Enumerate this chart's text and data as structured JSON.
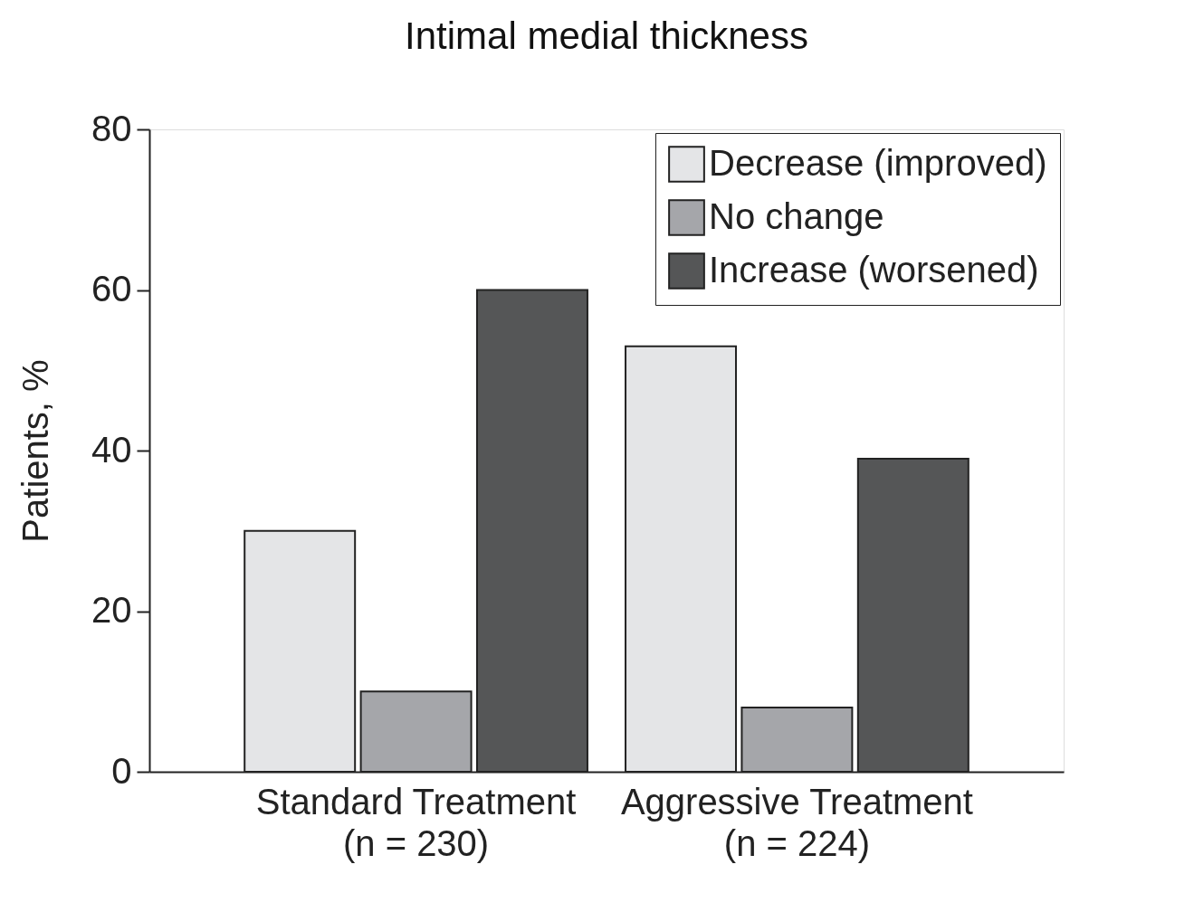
{
  "chart_data": {
    "type": "bar",
    "title": "Intimal medial thickness",
    "ylabel": "Patients, %",
    "categories": [
      "Standard Treatment\n(n = 230)",
      "Aggressive Treatment\n(n = 224)"
    ],
    "series": [
      {
        "name": "Decrease (improved)",
        "color": "#e4e5e7",
        "values": [
          30,
          53
        ]
      },
      {
        "name": "No change",
        "color": "#a5a6aa",
        "values": [
          10,
          8
        ]
      },
      {
        "name": "Increase (worsened)",
        "color": "#555657",
        "values": [
          60,
          39
        ]
      }
    ],
    "ylim": [
      0,
      80
    ],
    "yticks": [
      0,
      20,
      40,
      60,
      80
    ],
    "grid": false,
    "legend": "top right"
  }
}
